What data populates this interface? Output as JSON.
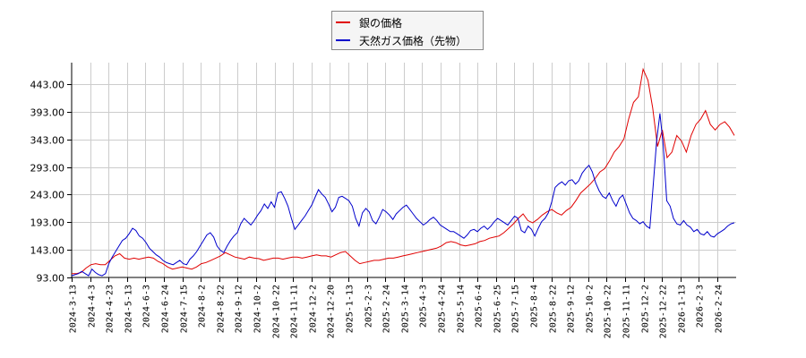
{
  "legend": {
    "items": [
      {
        "label": "銀の価格",
        "color": "#e00000"
      },
      {
        "label": "天然ガス価格（先物）",
        "color": "#0000cc"
      }
    ]
  },
  "chart_data": {
    "type": "line",
    "title": "",
    "xlabel": "",
    "ylabel": "",
    "ylim": [
      93,
      482
    ],
    "grid": true,
    "legend_position": "top-center",
    "y_ticks": [
      "93.00",
      "143.00",
      "193.00",
      "243.00",
      "293.00",
      "343.00",
      "393.00",
      "443.00"
    ],
    "x_ticks": [
      "2024-3-13",
      "2024-4-3",
      "2024-4-23",
      "2024-5-13",
      "2024-6-3",
      "2024-6-24",
      "2024-7-15",
      "2024-8-2",
      "2024-8-22",
      "2024-9-12",
      "2024-10-2",
      "2024-10-22",
      "2024-11-11",
      "2024-12-2",
      "2024-12-20",
      "2025-1-13",
      "2025-2-3",
      "2025-2-24",
      "2025-3-14",
      "2025-4-3",
      "2025-4-24",
      "2025-5-14",
      "2025-6-4",
      "2025-6-25",
      "2025-7-15",
      "2025-8-4",
      "2025-8-22",
      "2025-9-12",
      "2025-10-2",
      "2025-10-22",
      "2025-11-11",
      "2025-12-2",
      "2025-12-22",
      "2026-1-13",
      "2026-2-3",
      "2026-2-24"
    ],
    "series": [
      {
        "name": "銀の価格",
        "color": "#e00000",
        "values": [
          100,
          100,
          102,
          110,
          116,
          118,
          116,
          116,
          124,
          132,
          136,
          128,
          126,
          128,
          126,
          128,
          130,
          128,
          122,
          118,
          112,
          108,
          110,
          112,
          110,
          108,
          112,
          118,
          120,
          124,
          128,
          132,
          138,
          134,
          130,
          128,
          126,
          130,
          128,
          127,
          124,
          126,
          128,
          128,
          126,
          128,
          130,
          130,
          128,
          130,
          132,
          134,
          132,
          132,
          130,
          134,
          138,
          140,
          132,
          124,
          118,
          120,
          122,
          124,
          124,
          126,
          128,
          128,
          130,
          132,
          134,
          136,
          138,
          140,
          142,
          144,
          146,
          150,
          156,
          158,
          156,
          152,
          150,
          152,
          154,
          158,
          160,
          164,
          166,
          168,
          174,
          182,
          190,
          200,
          208,
          196,
          192,
          198,
          206,
          212,
          216,
          210,
          206,
          214,
          220,
          232,
          246,
          254,
          262,
          272,
          284,
          290,
          304,
          320,
          330,
          344,
          380,
          410,
          420,
          470,
          450,
          400,
          330,
          360,
          310,
          320,
          350,
          340,
          320,
          350,
          370,
          380,
          395,
          370,
          360,
          370,
          375,
          365,
          350
        ]
      },
      {
        "name": "天然ガス価格（先物）",
        "color": "#0000cc",
        "values": [
          96,
          98,
          100,
          104,
          100,
          96,
          108,
          102,
          98,
          96,
          100,
          118,
          130,
          140,
          150,
          160,
          164,
          172,
          182,
          178,
          168,
          164,
          156,
          146,
          140,
          134,
          130,
          124,
          120,
          118,
          116,
          120,
          124,
          118,
          116,
          126,
          132,
          140,
          150,
          160,
          170,
          174,
          166,
          150,
          142,
          138,
          150,
          160,
          168,
          174,
          190,
          200,
          194,
          188,
          196,
          206,
          214,
          226,
          218,
          230,
          220,
          246,
          248,
          236,
          222,
          200,
          180,
          188,
          196,
          204,
          214,
          224,
          238,
          252,
          244,
          238,
          226,
          212,
          220,
          238,
          240,
          236,
          232,
          222,
          200,
          186,
          210,
          218,
          212,
          196,
          190,
          202,
          216,
          212,
          206,
          198,
          208,
          214,
          220,
          224,
          216,
          208,
          200,
          194,
          188,
          192,
          198,
          202,
          196,
          188,
          184,
          180,
          176,
          176,
          172,
          168,
          164,
          170,
          178,
          180,
          176,
          182,
          186,
          180,
          186,
          194,
          200,
          196,
          192,
          188,
          196,
          204,
          200,
          178,
          174,
          186,
          180,
          168,
          182,
          194,
          200,
          210,
          230,
          256,
          262,
          266,
          260,
          268,
          270,
          262,
          268,
          282,
          290,
          296,
          284,
          264,
          250,
          240,
          236,
          246,
          232,
          222,
          236,
          242,
          226,
          210,
          200,
          196,
          190,
          194,
          186,
          182,
          260,
          340,
          390,
          330,
          232,
          222,
          200,
          190,
          188,
          196,
          188,
          184,
          176,
          180,
          172,
          170,
          176,
          168,
          166,
          172,
          176,
          180,
          186,
          190,
          192
        ]
      }
    ]
  }
}
